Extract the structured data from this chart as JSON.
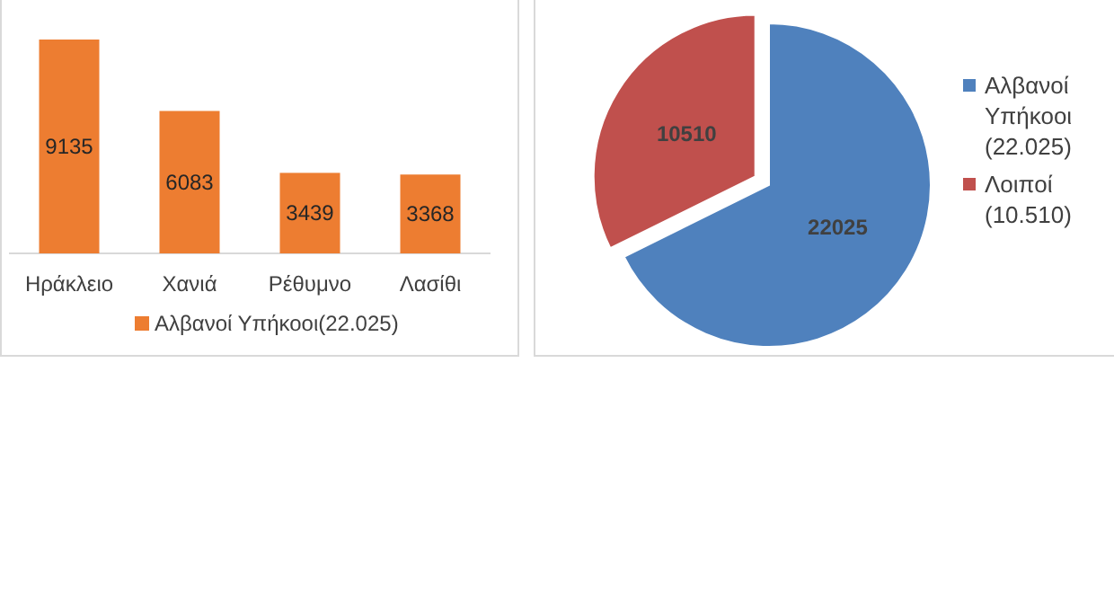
{
  "chart_data": [
    {
      "type": "bar",
      "categories": [
        "Ηράκλειο",
        "Χανιά",
        "Ρέθυμνο",
        "Λασίθι"
      ],
      "series": [
        {
          "name": "Αλβανοί Υπήκοοι(22.025)",
          "color": "#ed7d31",
          "values": [
            9135,
            6083,
            3439,
            3368
          ]
        }
      ],
      "data_labels": true,
      "legend": "bottom"
    },
    {
      "type": "pie",
      "categories": [
        "Αλβανοί Υπήκοοι (22.025)",
        "Λοιποί (10.510)"
      ],
      "values": [
        22025,
        10510
      ],
      "colors": [
        "#4f81bd",
        "#c0504d"
      ],
      "data_labels": true,
      "legend": "right"
    }
  ]
}
